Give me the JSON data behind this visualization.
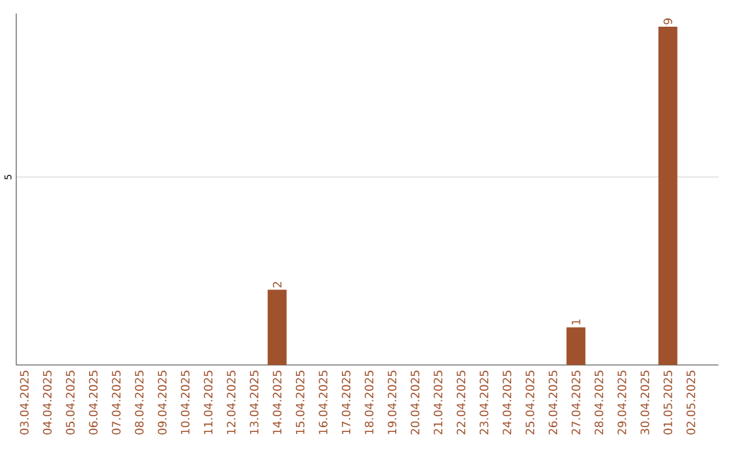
{
  "chart_data": {
    "type": "bar",
    "categories": [
      "03.04.2025",
      "04.04.2025",
      "05.04.2025",
      "06.04.2025",
      "07.04.2025",
      "08.04.2025",
      "09.04.2025",
      "10.04.2025",
      "11.04.2025",
      "12.04.2025",
      "13.04.2025",
      "14.04.2025",
      "15.04.2025",
      "16.04.2025",
      "17.04.2025",
      "18.04.2025",
      "19.04.2025",
      "20.04.2025",
      "21.04.2025",
      "22.04.2025",
      "23.04.2025",
      "24.04.2025",
      "25.04.2025",
      "26.04.2025",
      "27.04.2025",
      "28.04.2025",
      "29.04.2025",
      "30.04.2025",
      "01.05.2025",
      "02.05.2025"
    ],
    "values": [
      0,
      0,
      0,
      0,
      0,
      0,
      0,
      0,
      0,
      0,
      0,
      2,
      0,
      0,
      0,
      0,
      0,
      0,
      0,
      0,
      0,
      0,
      0,
      0,
      1,
      0,
      0,
      0,
      9,
      0
    ],
    "value_labels": [
      null,
      null,
      null,
      null,
      null,
      null,
      null,
      null,
      null,
      null,
      null,
      "2",
      null,
      null,
      null,
      null,
      null,
      null,
      null,
      null,
      null,
      null,
      null,
      null,
      "1",
      null,
      null,
      null,
      "9",
      null
    ],
    "color": "#a0522d",
    "ylim": [
      0,
      9.35
    ],
    "yticks": [
      5
    ],
    "grid": "y"
  }
}
